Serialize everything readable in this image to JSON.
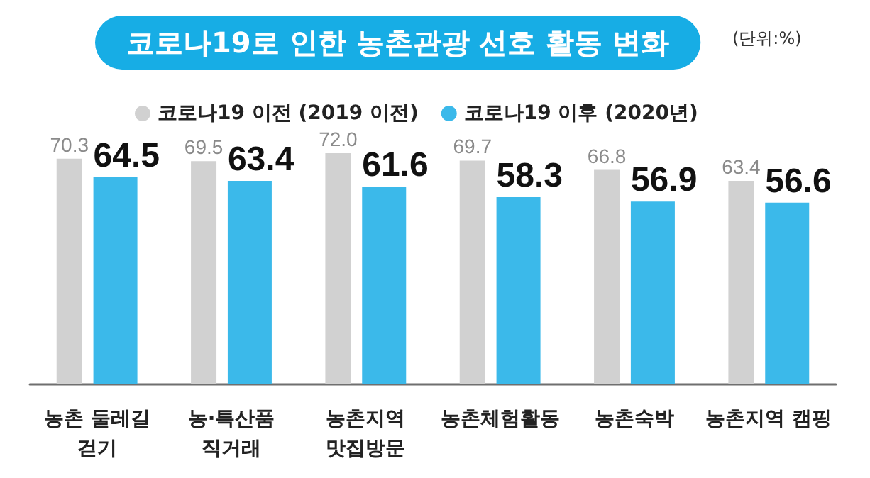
{
  "chart_data": {
    "type": "bar",
    "title": "코로나19로 인한 농촌관광 선호 활동 변화",
    "annotations": [
      "(단위:%)"
    ],
    "categories": [
      "농촌 둘레길\n걷기",
      "농·특산품\n직거래",
      "농촌지역\n맛집방문",
      "농촌체험활동",
      "농촌숙박",
      "농촌지역 캠핑"
    ],
    "series": [
      {
        "name": "코로나19 이전 (2019 이전)",
        "color": "#d1d1d1",
        "values": [
          70.3,
          69.5,
          72.0,
          69.7,
          66.8,
          63.4
        ],
        "value_labels": [
          "70.3",
          "69.5",
          "72.0",
          "69.7",
          "66.8",
          "63.4"
        ]
      },
      {
        "name": "코로나19 이후 (2020년)",
        "color": "#3bb9ea",
        "values": [
          64.5,
          63.4,
          61.6,
          58.3,
          56.9,
          56.6
        ],
        "value_labels": [
          "64.5",
          "63.4",
          "61.6",
          "58.3",
          "56.9",
          "56.6"
        ]
      }
    ],
    "tick_labels": "x",
    "legend": "top"
  }
}
